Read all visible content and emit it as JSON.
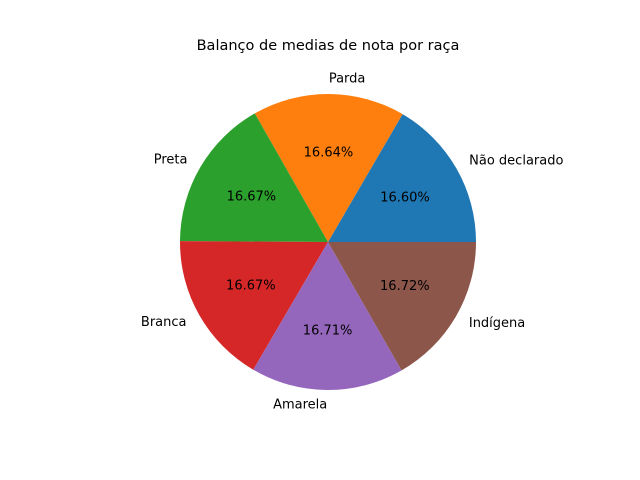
{
  "chart_data": {
    "type": "pie",
    "title": "Balanço de medias de nota por raça",
    "start_angle_deg": 0,
    "direction": "counterclockwise",
    "slices": [
      {
        "label": "Não declarado",
        "value": 16.6,
        "pct_label": "16.60%",
        "color": "#1f77b4"
      },
      {
        "label": "Parda",
        "value": 16.64,
        "pct_label": "16.64%",
        "color": "#ff7f0e"
      },
      {
        "label": "Preta",
        "value": 16.67,
        "pct_label": "16.67%",
        "color": "#2ca02c"
      },
      {
        "label": "Branca",
        "value": 16.67,
        "pct_label": "16.67%",
        "color": "#d62728"
      },
      {
        "label": "Amarela",
        "value": 16.71,
        "pct_label": "16.71%",
        "color": "#9467bd"
      },
      {
        "label": "Indígena",
        "value": 16.72,
        "pct_label": "16.72%",
        "color": "#8c564b"
      }
    ]
  }
}
